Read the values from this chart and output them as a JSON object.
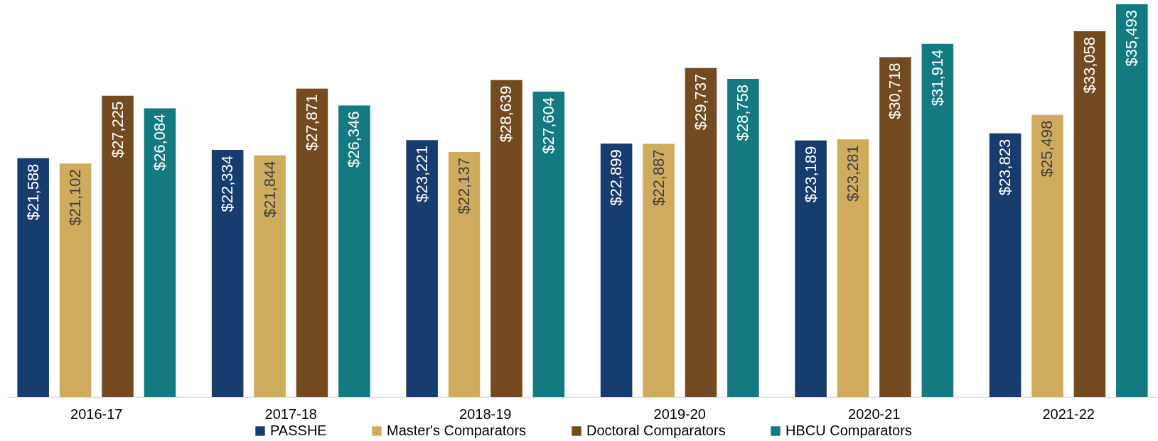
{
  "chart_data": {
    "type": "bar",
    "categories": [
      "2016-17",
      "2017-18",
      "2018-19",
      "2019-20",
      "2020-21",
      "2021-22"
    ],
    "series": [
      {
        "name": "PASSHE",
        "color": "#173c6e",
        "values": [
          21588,
          22334,
          23221,
          22899,
          23189,
          23823
        ],
        "value_labels": [
          "$21,588",
          "$22,334",
          "$23,221",
          "$22,899",
          "$23,189",
          "$23,823"
        ]
      },
      {
        "name": "Master's Comparators",
        "color": "#cfac5d",
        "values": [
          21102,
          21844,
          22137,
          22887,
          23281,
          25498
        ],
        "value_labels": [
          "$21,102",
          "$21,844",
          "$22,137",
          "$22,887",
          "$23,281",
          "$25,498"
        ]
      },
      {
        "name": "Doctoral Comparators",
        "color": "#744b20",
        "values": [
          27225,
          27871,
          28639,
          29737,
          30718,
          33058
        ],
        "value_labels": [
          "$27,225",
          "$27,871",
          "$28,639",
          "$29,737",
          "$30,718",
          "$33,058"
        ]
      },
      {
        "name": "HBCU Comparators",
        "color": "#137a82",
        "values": [
          26084,
          26346,
          27604,
          28758,
          31914,
          35493
        ],
        "value_labels": [
          "$26,084",
          "$26,346",
          "$27,604",
          "$28,758",
          "$31,914",
          "$35,493"
        ]
      }
    ],
    "legend": "bottom",
    "grid": false,
    "tick_labels": "x"
  }
}
